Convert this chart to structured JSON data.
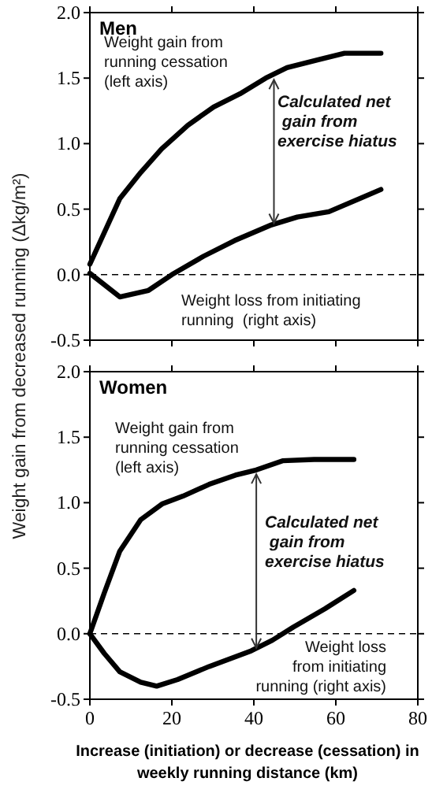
{
  "chart_data": [
    {
      "type": "line",
      "title": "Men",
      "ylabel": "Weight gain from decreased running (Δkg/m²)",
      "xlim": [
        0,
        80
      ],
      "ylim": [
        -0.5,
        2.0
      ],
      "xticks": [
        0,
        20,
        40,
        60,
        80
      ],
      "yticks": [
        {
          "value": -0.5,
          "label": "-0.5"
        },
        {
          "value": 0,
          "label": "0.0"
        },
        {
          "value": 0.5,
          "label": "0.5"
        },
        {
          "value": 1,
          "label": "1.0"
        },
        {
          "value": 1.5,
          "label": "1.5"
        },
        {
          "value": 2,
          "label": "2.0"
        }
      ],
      "tick_labels": "y",
      "grid": false,
      "marker": "none",
      "line_style": "solid",
      "series": [
        {
          "color": "#000000",
          "x": [
            0,
            7.3,
            12.4,
            17.5,
            23.9,
            30.2,
            36.6,
            42.9,
            48.1,
            55.7,
            62.1,
            71
          ],
          "values": [
            0.08,
            0.58,
            0.78,
            0.96,
            1.14,
            1.28,
            1.38,
            1.5,
            1.58,
            1.64,
            1.69,
            1.69
          ]
        },
        {
          "color": "#000000",
          "x": [
            0,
            7.3,
            14.3,
            20,
            27.7,
            35.3,
            44.3,
            50.6,
            58.3,
            71
          ],
          "values": [
            0.01,
            -0.17,
            -0.12,
            0,
            0.14,
            0.26,
            0.38,
            0.44,
            0.48,
            0.65
          ]
        }
      ],
      "ref_lines": [
        {
          "axis": "y",
          "value": 0,
          "line_style": "dashed",
          "color": "#000000"
        }
      ],
      "annotations": [
        "Weight gain from\nrunning cessation\n(left axis)",
        "Calculated net\n gain from\nexercise hiatus",
        "Weight loss from initiating\nrunning  (right axis)"
      ]
    },
    {
      "type": "line",
      "title": "Women",
      "xlabel": "Increase (initiation) or decrease (cessation) in\nweekly running distance (km)",
      "xlim": [
        0,
        80
      ],
      "ylim": [
        -0.5,
        2.0
      ],
      "xticks": [
        0,
        20,
        40,
        60,
        80
      ],
      "yticks": [
        {
          "value": -0.5,
          "label": "-0.5"
        },
        {
          "value": 0,
          "label": "0.0"
        },
        {
          "value": 0.5,
          "label": "0.5"
        },
        {
          "value": 1,
          "label": "1.0"
        },
        {
          "value": 1.5,
          "label": "1.5"
        },
        {
          "value": 2,
          "label": "2.0"
        }
      ],
      "grid": false,
      "marker": "none",
      "line_style": "solid",
      "series": [
        {
          "color": "#000000",
          "x": [
            0,
            3.5,
            7.3,
            12.4,
            17.6,
            22.7,
            29.1,
            35.5,
            40.6,
            47,
            54.7,
            64.4
          ],
          "values": [
            0,
            0.31,
            0.63,
            0.87,
            0.99,
            1.05,
            1.14,
            1.21,
            1.25,
            1.32,
            1.33,
            1.33
          ]
        },
        {
          "color": "#000000",
          "x": [
            0,
            3.5,
            7.3,
            12.4,
            16.3,
            21.4,
            29.1,
            39.4,
            44.5,
            49.6,
            57.3,
            64.4
          ],
          "values": [
            0,
            -0.15,
            -0.29,
            -0.37,
            -0.4,
            -0.35,
            -0.25,
            -0.13,
            -0.05,
            0.05,
            0.19,
            0.33
          ]
        }
      ],
      "ref_lines": [
        {
          "axis": "y",
          "value": 0,
          "line_style": "dashed",
          "color": "#000000"
        }
      ],
      "annotations": [
        "Weight gain from\nrunning cessation\n(left axis)",
        "Calculated net\n gain from\nexercise hiatus",
        "Weight loss\nfrom initiating\nrunning (right axis)"
      ]
    }
  ]
}
